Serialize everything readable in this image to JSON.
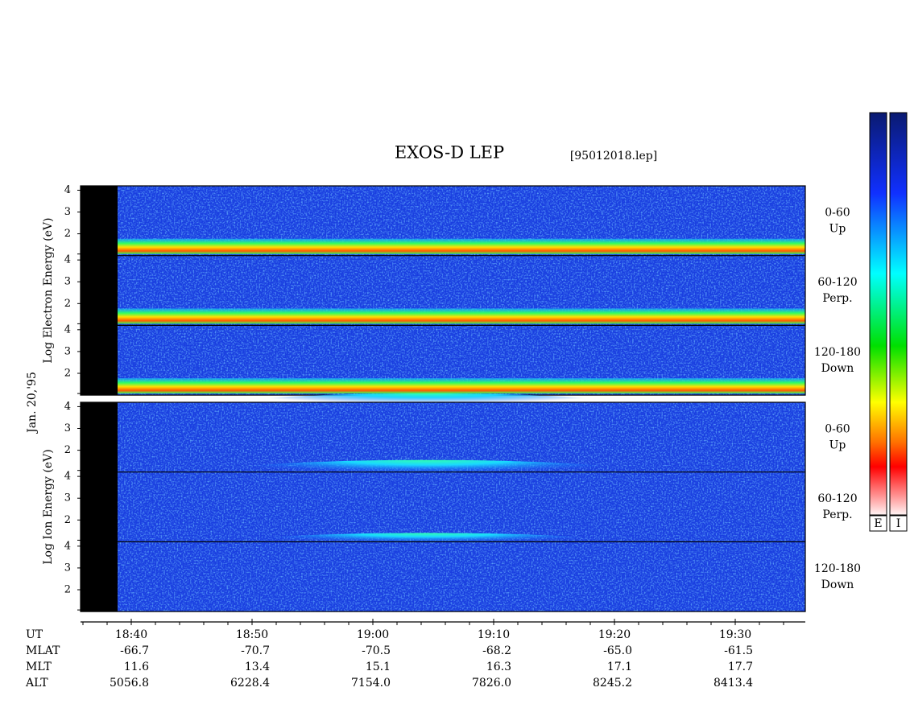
{
  "chart_data": {
    "type": "spectrogram",
    "title": "EXOS-D LEP",
    "file": "[95012018.lep]",
    "date": "Jan. 20,'95",
    "panels": [
      {
        "ylabel": "Log  Electron  Energy (eV)",
        "strips": [
          {
            "angle": "0-60",
            "dir": "Up"
          },
          {
            "angle": "60-120",
            "dir": "Perp."
          },
          {
            "angle": "120-180",
            "dir": "Down"
          }
        ]
      },
      {
        "ylabel": "Log  Ion  Energy (eV)",
        "strips": [
          {
            "angle": "0-60",
            "dir": "Up"
          },
          {
            "angle": "60-120",
            "dir": "Perp."
          },
          {
            "angle": "120-180",
            "dir": "Down"
          }
        ]
      }
    ],
    "ylim": [
      1,
      4.2
    ],
    "yticks": [
      2,
      3,
      4
    ],
    "xlabel": "UT",
    "xticks": [
      "18:40",
      "18:50",
      "19:00",
      "19:10",
      "19:20",
      "19:30"
    ],
    "orbit": [
      {
        "label": "MLAT",
        "values": [
          "-66.7",
          "-70.7",
          "-70.5",
          "-68.2",
          "-65.0",
          "-61.5"
        ]
      },
      {
        "label": "MLT",
        "values": [
          "11.6",
          "13.4",
          "15.1",
          "16.3",
          "17.1",
          "17.7"
        ]
      },
      {
        "label": "ALT",
        "values": [
          "5056.8",
          "6228.4",
          "7154.0",
          "7826.0",
          "8245.2",
          "8413.4"
        ]
      }
    ],
    "colorbars": [
      "E",
      "I"
    ]
  }
}
